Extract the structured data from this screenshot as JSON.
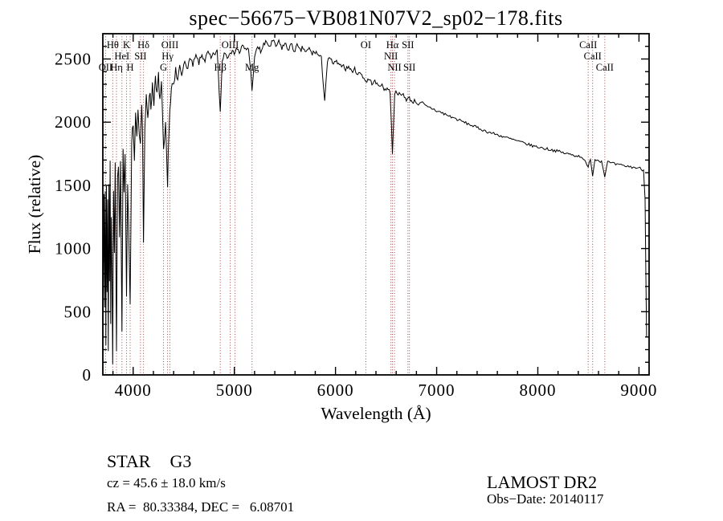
{
  "chart_data": {
    "type": "line",
    "title": "spec−56675−VB081N07V2_sp02−178.fits",
    "xlabel": "Wavelength (Å)",
    "ylabel": "Flux (relative)",
    "xlim": [
      3700,
      9100
    ],
    "ylim": [
      0,
      2700
    ],
    "x_ticks": [
      4000,
      5000,
      6000,
      7000,
      8000,
      9000
    ],
    "y_ticks": [
      0,
      500,
      1000,
      1500,
      2000,
      2500
    ],
    "grid": false,
    "legend": "none",
    "line_color": "#000000",
    "marker_line_color": "#a04848",
    "noise_regions": [
      {
        "from": 3700,
        "to": 4050,
        "amp": 170
      },
      {
        "from": 4050,
        "to": 4450,
        "amp": 110
      },
      {
        "from": 4450,
        "to": 5950,
        "amp": 48
      },
      {
        "from": 5950,
        "to": 7100,
        "amp": 32
      },
      {
        "from": 7100,
        "to": 9100,
        "amp": 22
      }
    ],
    "spectral_lines": [
      {
        "wavelength": 3727,
        "label": "OII",
        "row": 3
      },
      {
        "wavelength": 3798,
        "label": "Hθ",
        "row": 1
      },
      {
        "wavelength": 3835,
        "label": "Hη",
        "row": 3
      },
      {
        "wavelength": 3889,
        "label": "HeI",
        "row": 2
      },
      {
        "wavelength": 3934,
        "label": "K",
        "row": 1
      },
      {
        "wavelength": 3970,
        "label": "H",
        "row": 3
      },
      {
        "wavelength": 4072,
        "label": "SII",
        "row": 2
      },
      {
        "wavelength": 4102,
        "label": "Hδ",
        "row": 1
      },
      {
        "wavelength": 4300,
        "label": "G",
        "row": 3
      },
      {
        "wavelength": 4340,
        "label": "Hγ",
        "row": 2
      },
      {
        "wavelength": 4363,
        "label": "OIII",
        "row": 1
      },
      {
        "wavelength": 4861,
        "label": "Hβ",
        "row": 3
      },
      {
        "wavelength": 4959,
        "label": "OIII",
        "row": 1
      },
      {
        "wavelength": 5007,
        "label": "",
        "row": 1
      },
      {
        "wavelength": 5175,
        "label": "Mg",
        "row": 3
      },
      {
        "wavelength": 6300,
        "label": "OI",
        "row": 1
      },
      {
        "wavelength": 6548,
        "label": "NII",
        "row": 2
      },
      {
        "wavelength": 6563,
        "label": "Hα",
        "row": 1
      },
      {
        "wavelength": 6583,
        "label": "NII",
        "row": 3
      },
      {
        "wavelength": 6716,
        "label": "SII",
        "row": 1
      },
      {
        "wavelength": 6731,
        "label": "SII",
        "row": 3
      },
      {
        "wavelength": 8498,
        "label": "CaII",
        "row": 1
      },
      {
        "wavelength": 8542,
        "label": "CaII",
        "row": 2
      },
      {
        "wavelength": 8662,
        "label": "CaII",
        "row": 3
      }
    ],
    "series": [
      {
        "name": "flux",
        "points": [
          [
            3700,
            20
          ],
          [
            3706,
            900
          ],
          [
            3712,
            1350
          ],
          [
            3718,
            500
          ],
          [
            3724,
            1450
          ],
          [
            3730,
            250
          ],
          [
            3736,
            1500
          ],
          [
            3742,
            700
          ],
          [
            3748,
            1380
          ],
          [
            3754,
            150
          ],
          [
            3760,
            1550
          ],
          [
            3766,
            800
          ],
          [
            3772,
            1650
          ],
          [
            3778,
            400
          ],
          [
            3784,
            1300
          ],
          [
            3790,
            900
          ],
          [
            3798,
            120
          ],
          [
            3806,
            1450
          ],
          [
            3814,
            1000
          ],
          [
            3822,
            1600
          ],
          [
            3835,
            230
          ],
          [
            3845,
            1500
          ],
          [
            3855,
            1700
          ],
          [
            3865,
            1150
          ],
          [
            3875,
            1750
          ],
          [
            3889,
            380
          ],
          [
            3900,
            1780
          ],
          [
            3910,
            1400
          ],
          [
            3920,
            1820
          ],
          [
            3934,
            550
          ],
          [
            3945,
            1500
          ],
          [
            3955,
            1150
          ],
          [
            3970,
            480
          ],
          [
            3985,
            1750
          ],
          [
            4000,
            2050
          ],
          [
            4012,
            1750
          ],
          [
            4024,
            2100
          ],
          [
            4036,
            1900
          ],
          [
            4048,
            2180
          ],
          [
            4060,
            1950
          ],
          [
            4072,
            1800
          ],
          [
            4084,
            2150
          ],
          [
            4092,
            1950
          ],
          [
            4102,
            1050
          ],
          [
            4115,
            1900
          ],
          [
            4130,
            2200
          ],
          [
            4145,
            2050
          ],
          [
            4160,
            2250
          ],
          [
            4175,
            2120
          ],
          [
            4190,
            2300
          ],
          [
            4205,
            2180
          ],
          [
            4220,
            2320
          ],
          [
            4235,
            2200
          ],
          [
            4250,
            2350
          ],
          [
            4265,
            2180
          ],
          [
            4280,
            2280
          ],
          [
            4300,
            1750
          ],
          [
            4320,
            1950
          ],
          [
            4340,
            1480
          ],
          [
            4355,
            2000
          ],
          [
            4370,
            2180
          ],
          [
            4385,
            2300
          ],
          [
            4400,
            2250
          ],
          [
            4420,
            2400
          ],
          [
            4440,
            2320
          ],
          [
            4460,
            2450
          ],
          [
            4480,
            2380
          ],
          [
            4500,
            2480
          ],
          [
            4530,
            2420
          ],
          [
            4560,
            2500
          ],
          [
            4590,
            2450
          ],
          [
            4620,
            2520
          ],
          [
            4650,
            2470
          ],
          [
            4680,
            2530
          ],
          [
            4710,
            2490
          ],
          [
            4740,
            2550
          ],
          [
            4770,
            2500
          ],
          [
            4800,
            2540
          ],
          [
            4830,
            2560
          ],
          [
            4861,
            2080
          ],
          [
            4880,
            2480
          ],
          [
            4900,
            2560
          ],
          [
            4930,
            2520
          ],
          [
            4960,
            2570
          ],
          [
            4990,
            2540
          ],
          [
            5020,
            2590
          ],
          [
            5050,
            2550
          ],
          [
            5080,
            2600
          ],
          [
            5110,
            2570
          ],
          [
            5140,
            2590
          ],
          [
            5175,
            2270
          ],
          [
            5200,
            2500
          ],
          [
            5230,
            2600
          ],
          [
            5260,
            2560
          ],
          [
            5290,
            2610
          ],
          [
            5320,
            2630
          ],
          [
            5350,
            2600
          ],
          [
            5380,
            2640
          ],
          [
            5410,
            2600
          ],
          [
            5440,
            2630
          ],
          [
            5470,
            2590
          ],
          [
            5500,
            2620
          ],
          [
            5530,
            2580
          ],
          [
            5560,
            2610
          ],
          [
            5590,
            2570
          ],
          [
            5620,
            2600
          ],
          [
            5650,
            2560
          ],
          [
            5680,
            2590
          ],
          [
            5710,
            2550
          ],
          [
            5740,
            2580
          ],
          [
            5770,
            2540
          ],
          [
            5800,
            2560
          ],
          [
            5830,
            2530
          ],
          [
            5860,
            2500
          ],
          [
            5893,
            2180
          ],
          [
            5920,
            2480
          ],
          [
            5950,
            2500
          ],
          [
            5980,
            2460
          ],
          [
            6010,
            2480
          ],
          [
            6040,
            2440
          ],
          [
            6070,
            2460
          ],
          [
            6100,
            2420
          ],
          [
            6130,
            2440
          ],
          [
            6160,
            2400
          ],
          [
            6190,
            2420
          ],
          [
            6220,
            2380
          ],
          [
            6250,
            2390
          ],
          [
            6280,
            2350
          ],
          [
            6300,
            2320
          ],
          [
            6330,
            2340
          ],
          [
            6360,
            2310
          ],
          [
            6390,
            2320
          ],
          [
            6420,
            2290
          ],
          [
            6450,
            2300
          ],
          [
            6480,
            2260
          ],
          [
            6510,
            2270
          ],
          [
            6540,
            2240
          ],
          [
            6563,
            1760
          ],
          [
            6585,
            2230
          ],
          [
            6610,
            2240
          ],
          [
            6640,
            2210
          ],
          [
            6670,
            2220
          ],
          [
            6700,
            2180
          ],
          [
            6730,
            2190
          ],
          [
            6760,
            2160
          ],
          [
            6790,
            2170
          ],
          [
            6820,
            2140
          ],
          [
            6860,
            2150
          ],
          [
            6900,
            2120
          ],
          [
            6950,
            2110
          ],
          [
            7000,
            2090
          ],
          [
            7060,
            2070
          ],
          [
            7120,
            2050
          ],
          [
            7180,
            2030
          ],
          [
            7240,
            2010
          ],
          [
            7300,
            1990
          ],
          [
            7360,
            1970
          ],
          [
            7420,
            1950
          ],
          [
            7480,
            1930
          ],
          [
            7540,
            1915
          ],
          [
            7600,
            1900
          ],
          [
            7660,
            1885
          ],
          [
            7720,
            1870
          ],
          [
            7780,
            1855
          ],
          [
            7840,
            1840
          ],
          [
            7900,
            1825
          ],
          [
            7960,
            1810
          ],
          [
            8020,
            1800
          ],
          [
            8080,
            1790
          ],
          [
            8140,
            1780
          ],
          [
            8200,
            1770
          ],
          [
            8260,
            1755
          ],
          [
            8320,
            1745
          ],
          [
            8380,
            1735
          ],
          [
            8440,
            1725
          ],
          [
            8498,
            1640
          ],
          [
            8520,
            1715
          ],
          [
            8542,
            1580
          ],
          [
            8565,
            1705
          ],
          [
            8600,
            1700
          ],
          [
            8630,
            1690
          ],
          [
            8662,
            1575
          ],
          [
            8690,
            1685
          ],
          [
            8730,
            1675
          ],
          [
            8770,
            1665
          ],
          [
            8810,
            1660
          ],
          [
            8850,
            1655
          ],
          [
            8890,
            1650
          ],
          [
            8930,
            1645
          ],
          [
            8970,
            1640
          ],
          [
            9010,
            1635
          ],
          [
            9045,
            1620
          ],
          [
            9060,
            1400
          ],
          [
            9075,
            300
          ]
        ]
      }
    ]
  },
  "footer": {
    "object_type": "STAR",
    "subclass": "G3",
    "survey": "LAMOST DR2",
    "cz": "cz = 45.6 ± 18.0 km/s",
    "obs_date": "Obs−Date: 20140117",
    "coords": "RA =  80.33384, DEC =   6.08701"
  }
}
